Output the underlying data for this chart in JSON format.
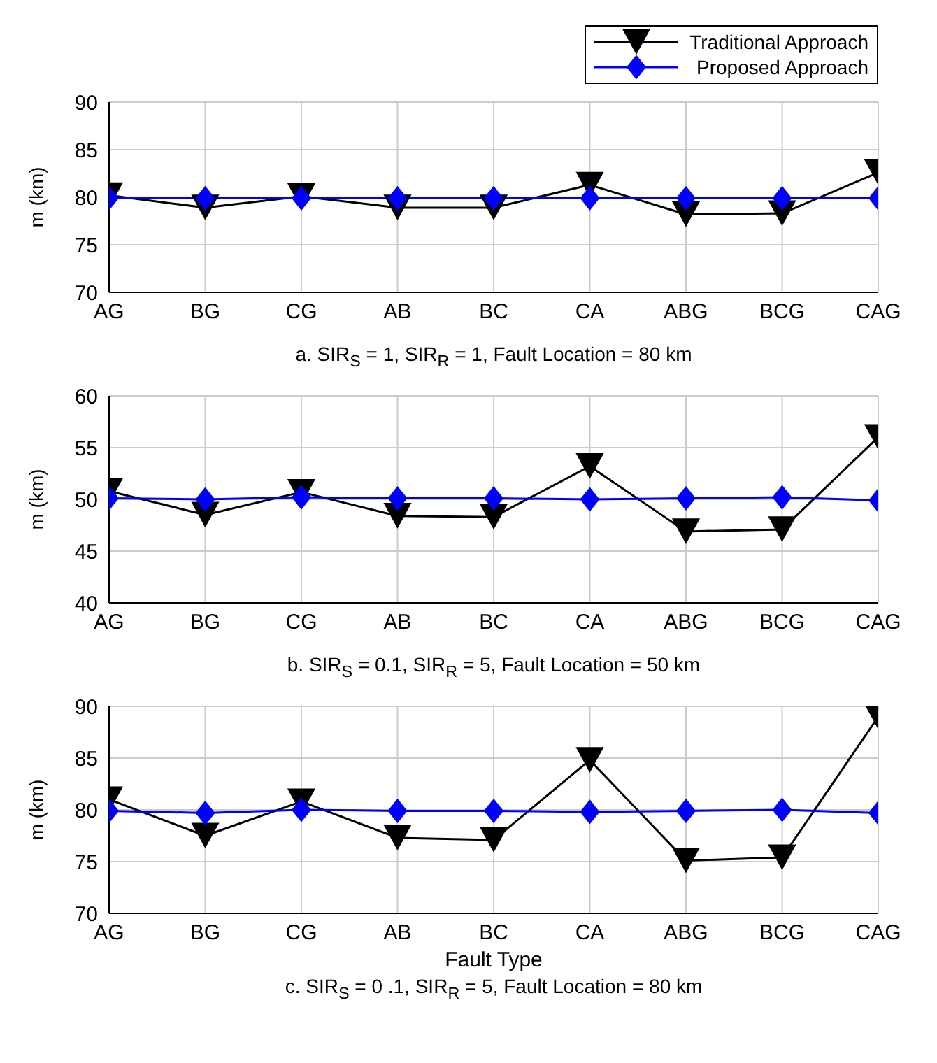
{
  "chart_data": [
    {
      "type": "line",
      "ylabel": "m (km)",
      "annotations": [
        "a. SIR$_{S}$ = 1, SIR$_{R}$ = 1, Fault Location = 80 km"
      ],
      "categories": [
        "AG",
        "BG",
        "CG",
        "AB",
        "BC",
        "CA",
        "ABG",
        "BCG",
        "CAG"
      ],
      "ylim": [
        70,
        90
      ],
      "yticks": [
        70,
        75,
        80,
        85,
        90
      ],
      "grid": true,
      "legend": "top right",
      "series": [
        {
          "name": "Traditional Approach",
          "color": "#000000",
          "marker": "triangle",
          "values": [
            80.2,
            78.9,
            80.1,
            78.9,
            78.9,
            81.3,
            78.2,
            78.3,
            82.6
          ]
        },
        {
          "name": "Proposed Approach",
          "color": "#0000ff",
          "marker": "diamond",
          "values": [
            79.9,
            79.9,
            79.9,
            79.9,
            79.9,
            79.9,
            79.9,
            79.9,
            79.9
          ]
        }
      ]
    },
    {
      "type": "line",
      "ylabel": "m (km)",
      "annotations": [
        "b. SIR$_{S}$ = 0.1, SIR$_{R}$ = 5, Fault Location = 50 km"
      ],
      "categories": [
        "AG",
        "BG",
        "CG",
        "AB",
        "BC",
        "CA",
        "ABG",
        "BCG",
        "CAG"
      ],
      "ylim": [
        40,
        60
      ],
      "yticks": [
        40,
        45,
        50,
        55,
        60
      ],
      "grid": true,
      "series": [
        {
          "color": "#000000",
          "marker": "triangle",
          "values": [
            50.8,
            48.5,
            50.7,
            48.4,
            48.3,
            53.2,
            46.9,
            47.1,
            56.0
          ]
        },
        {
          "color": "#0000ff",
          "marker": "diamond",
          "values": [
            50.1,
            50.0,
            50.2,
            50.1,
            50.1,
            50.0,
            50.1,
            50.2,
            49.9
          ]
        }
      ]
    },
    {
      "type": "line",
      "ylabel": "m (km)",
      "xlabel": "Fault Type",
      "annotations": [
        "c. SIR$_{S}$ = 0 .1, SIR$_{R}$ = 5, Fault Location = 80 km"
      ],
      "categories": [
        "AG",
        "BG",
        "CG",
        "AB",
        "BC",
        "CA",
        "ABG",
        "BCG",
        "CAG"
      ],
      "ylim": [
        70,
        90
      ],
      "yticks": [
        70,
        75,
        80,
        85,
        90
      ],
      "grid": true,
      "series": [
        {
          "color": "#000000",
          "marker": "triangle",
          "values": [
            81.0,
            77.5,
            80.8,
            77.3,
            77.1,
            84.8,
            75.1,
            75.4,
            89.0
          ]
        },
        {
          "color": "#0000ff",
          "marker": "diamond",
          "values": [
            79.9,
            79.7,
            80.0,
            79.9,
            79.9,
            79.8,
            79.9,
            80.0,
            79.7
          ]
        }
      ]
    }
  ]
}
